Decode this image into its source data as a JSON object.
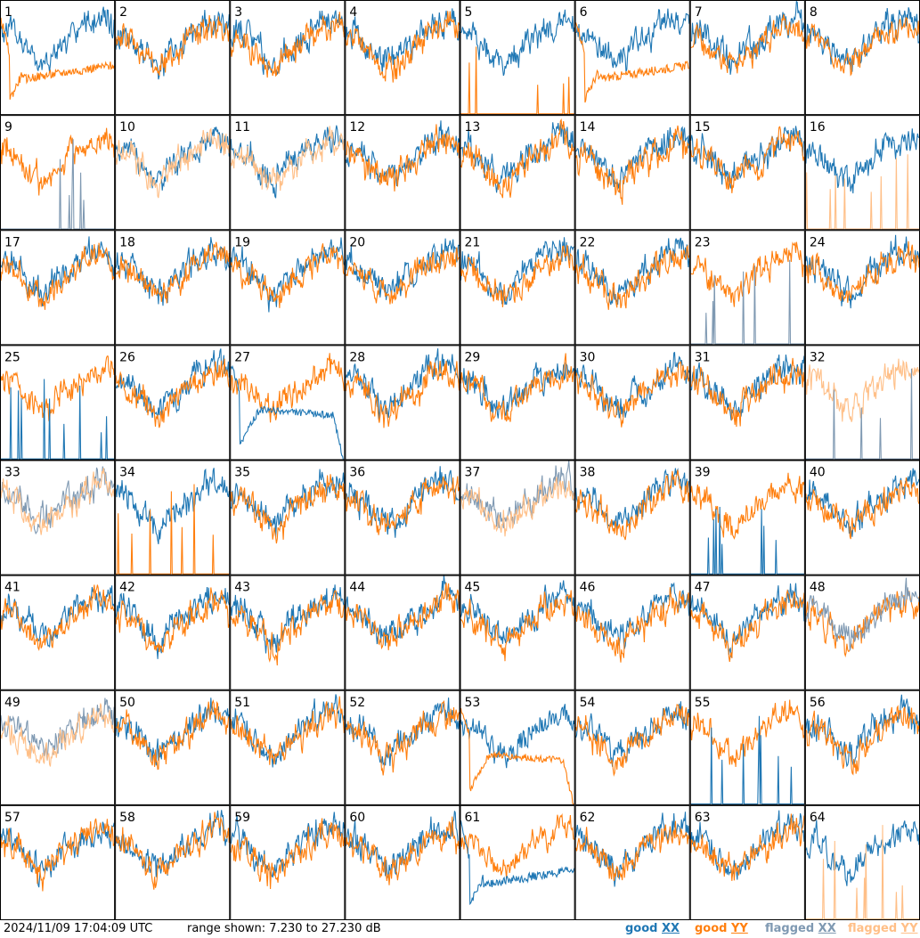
{
  "footer": {
    "timestamp": "2024/11/09 17:04:09 UTC",
    "range_prefix": "range shown:",
    "range_from": "7.230",
    "range_to_word": "to",
    "range_to": "27.230",
    "range_unit": "dB"
  },
  "legend": [
    {
      "pre": "good ",
      "under": "XX",
      "color": "#1f77b4"
    },
    {
      "pre": "good ",
      "under": "YY",
      "color": "#ff7f0e"
    },
    {
      "pre": "flagged ",
      "under": "XX",
      "color": "#7f99b2"
    },
    {
      "pre": "flagged ",
      "under": "YY",
      "color": "#ffbf87"
    }
  ],
  "chart_data": {
    "type": "line",
    "panel_count": 64,
    "columns": 8,
    "y_range_db": [
      7.23,
      27.23
    ],
    "panel_labels": [
      "1",
      "2",
      "3",
      "4",
      "5",
      "6",
      "7",
      "8",
      "9",
      "10",
      "11",
      "12",
      "13",
      "14",
      "15",
      "16",
      "17",
      "18",
      "19",
      "20",
      "21",
      "22",
      "23",
      "24",
      "25",
      "26",
      "27",
      "28",
      "29",
      "30",
      "31",
      "32",
      "33",
      "34",
      "35",
      "36",
      "37",
      "38",
      "39",
      "40",
      "41",
      "42",
      "43",
      "44",
      "45",
      "46",
      "47",
      "48",
      "49",
      "50",
      "51",
      "52",
      "53",
      "54",
      "55",
      "56",
      "57",
      "58",
      "59",
      "60",
      "61",
      "62",
      "63",
      "64"
    ],
    "series_styles": {
      "X": "good XX",
      "Y": "good YY",
      "FX": "flagged XX",
      "FY": "flagged YY"
    },
    "colors": {
      "X": "#1f77b4",
      "Y": "#ff7f0e",
      "FX": "#7f99b2",
      "FY": "#ffbf87"
    },
    "normal_shape_db": [
      20.5,
      20.8,
      21.2,
      20.9,
      20.3,
      19.6,
      18.9,
      18.2,
      17.4,
      16.8,
      16.2,
      15.8,
      15.9,
      16.6,
      17.4,
      18.1,
      18.6,
      19.2,
      19.7,
      20.2,
      20.8,
      21.3,
      21.8,
      22.1,
      22.5,
      22.9,
      23.1,
      23.4,
      23.2,
      22.6,
      21.8
    ],
    "panels": {
      "1": {
        "kind": "dip-low-Y"
      },
      "5": {
        "kind": "spikes",
        "draw_order": [
          "X",
          "Y"
        ],
        "spike_series": "Y"
      },
      "6": {
        "kind": "dip-low-Y"
      },
      "9": {
        "kind": "spikes",
        "draw_order": [
          "Y",
          "FX"
        ],
        "spike_series": "FX"
      },
      "10": {
        "kind": "normal",
        "draw_order": [
          "X",
          "FY"
        ]
      },
      "11": {
        "kind": "normal",
        "draw_order": [
          "X",
          "FY"
        ]
      },
      "16": {
        "kind": "spikes",
        "draw_order": [
          "X",
          "FY"
        ],
        "spike_series": "FY"
      },
      "23": {
        "kind": "spikes",
        "draw_order": [
          "Y",
          "FX"
        ],
        "spike_series": "FX"
      },
      "25": {
        "kind": "spikes",
        "draw_order": [
          "Y",
          "X"
        ],
        "spike_series": "X"
      },
      "27": {
        "kind": "plateau-X"
      },
      "32": {
        "kind": "spikes",
        "draw_order": [
          "FY",
          "FX"
        ],
        "spike_series": "FX"
      },
      "33": {
        "kind": "normal",
        "draw_order": [
          "FX",
          "FY"
        ]
      },
      "34": {
        "kind": "spikes",
        "draw_order": [
          "X",
          "Y"
        ],
        "spike_series": "Y"
      },
      "37": {
        "kind": "normal",
        "draw_order": [
          "FX",
          "FY"
        ]
      },
      "39": {
        "kind": "spikes",
        "draw_order": [
          "Y",
          "X"
        ],
        "spike_series": "X"
      },
      "48": {
        "kind": "normal",
        "draw_order": [
          "Y",
          "FX"
        ]
      },
      "49": {
        "kind": "normal",
        "draw_order": [
          "FX",
          "FY"
        ]
      },
      "53": {
        "kind": "plateau-Y"
      },
      "55": {
        "kind": "spikes",
        "draw_order": [
          "Y",
          "X"
        ],
        "spike_series": "X"
      },
      "61": {
        "kind": "dip-low-X"
      },
      "64": {
        "kind": "spikes",
        "draw_order": [
          "X",
          "FY"
        ],
        "spike_series": "FY"
      }
    }
  }
}
